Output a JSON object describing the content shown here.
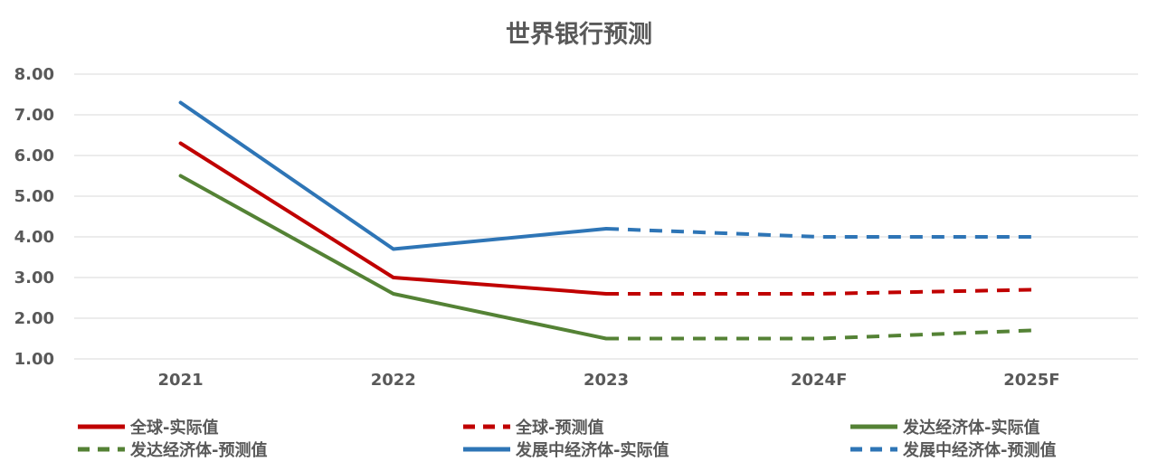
{
  "chart_data": {
    "type": "line",
    "title": "世界银行预测",
    "categories": [
      "2021",
      "2022",
      "2023",
      "2024F",
      "2025F"
    ],
    "ylim": [
      1.0,
      8.0
    ],
    "yticks": [
      "1.00",
      "2.00",
      "3.00",
      "4.00",
      "5.00",
      "6.00",
      "7.00",
      "8.00"
    ],
    "grid": true,
    "legend_position": "bottom",
    "series": [
      {
        "name": "全球-实际值",
        "color": "#C00000",
        "dashed": false,
        "values": [
          6.3,
          3.0,
          2.6,
          null,
          null
        ]
      },
      {
        "name": "全球-预测值",
        "color": "#C00000",
        "dashed": true,
        "values": [
          null,
          null,
          2.6,
          2.6,
          2.7
        ]
      },
      {
        "name": "发达经济体-实际值",
        "color": "#548235",
        "dashed": false,
        "values": [
          5.5,
          2.6,
          1.5,
          null,
          null
        ]
      },
      {
        "name": "发达经济体-预测值",
        "color": "#548235",
        "dashed": true,
        "values": [
          null,
          null,
          1.5,
          1.5,
          1.7
        ]
      },
      {
        "name": "发展中经济体-实际值",
        "color": "#2E75B6",
        "dashed": false,
        "values": [
          7.3,
          3.7,
          4.2,
          null,
          null
        ]
      },
      {
        "name": "发展中经济体-预测值",
        "color": "#2E75B6",
        "dashed": true,
        "values": [
          null,
          null,
          4.2,
          4.0,
          4.0
        ]
      }
    ]
  }
}
